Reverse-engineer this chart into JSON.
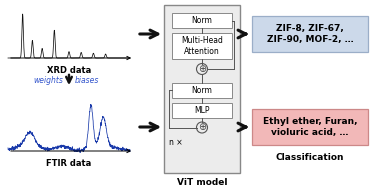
{
  "bg_color": "#ffffff",
  "xrd_label": "XRD data",
  "ftir_label": "FTIR data",
  "vit_label": "ViT model",
  "class_label": "Classification",
  "transfer_text1": "weights",
  "transfer_text2": "biases",
  "norm1_text": "Norm",
  "attention_text": "Multi-Head\nAttention",
  "norm2_text": "Norm",
  "mlp_text": "MLP",
  "nx_text": "n ×",
  "box1_text": "ZIF-8, ZIF-67,\nZIF-90, MOF-2, …",
  "box2_text": "Ethyl ether, Furan,\nvioluric acid, …",
  "box1_facecolor": "#ccd9ea",
  "box1_edgecolor": "#9baec8",
  "box2_facecolor": "#f2b8b8",
  "box2_edgecolor": "#cc8888",
  "vit_facecolor": "#ececec",
  "vit_edgecolor": "#888888",
  "inner_facecolor": "#ffffff",
  "inner_edgecolor": "#888888",
  "arrow_color": "#111111",
  "xrd_color": "#111111",
  "ftir_color": "#1a3aaa",
  "weight_color": "#3355cc",
  "down_arrow_color": "#111111"
}
